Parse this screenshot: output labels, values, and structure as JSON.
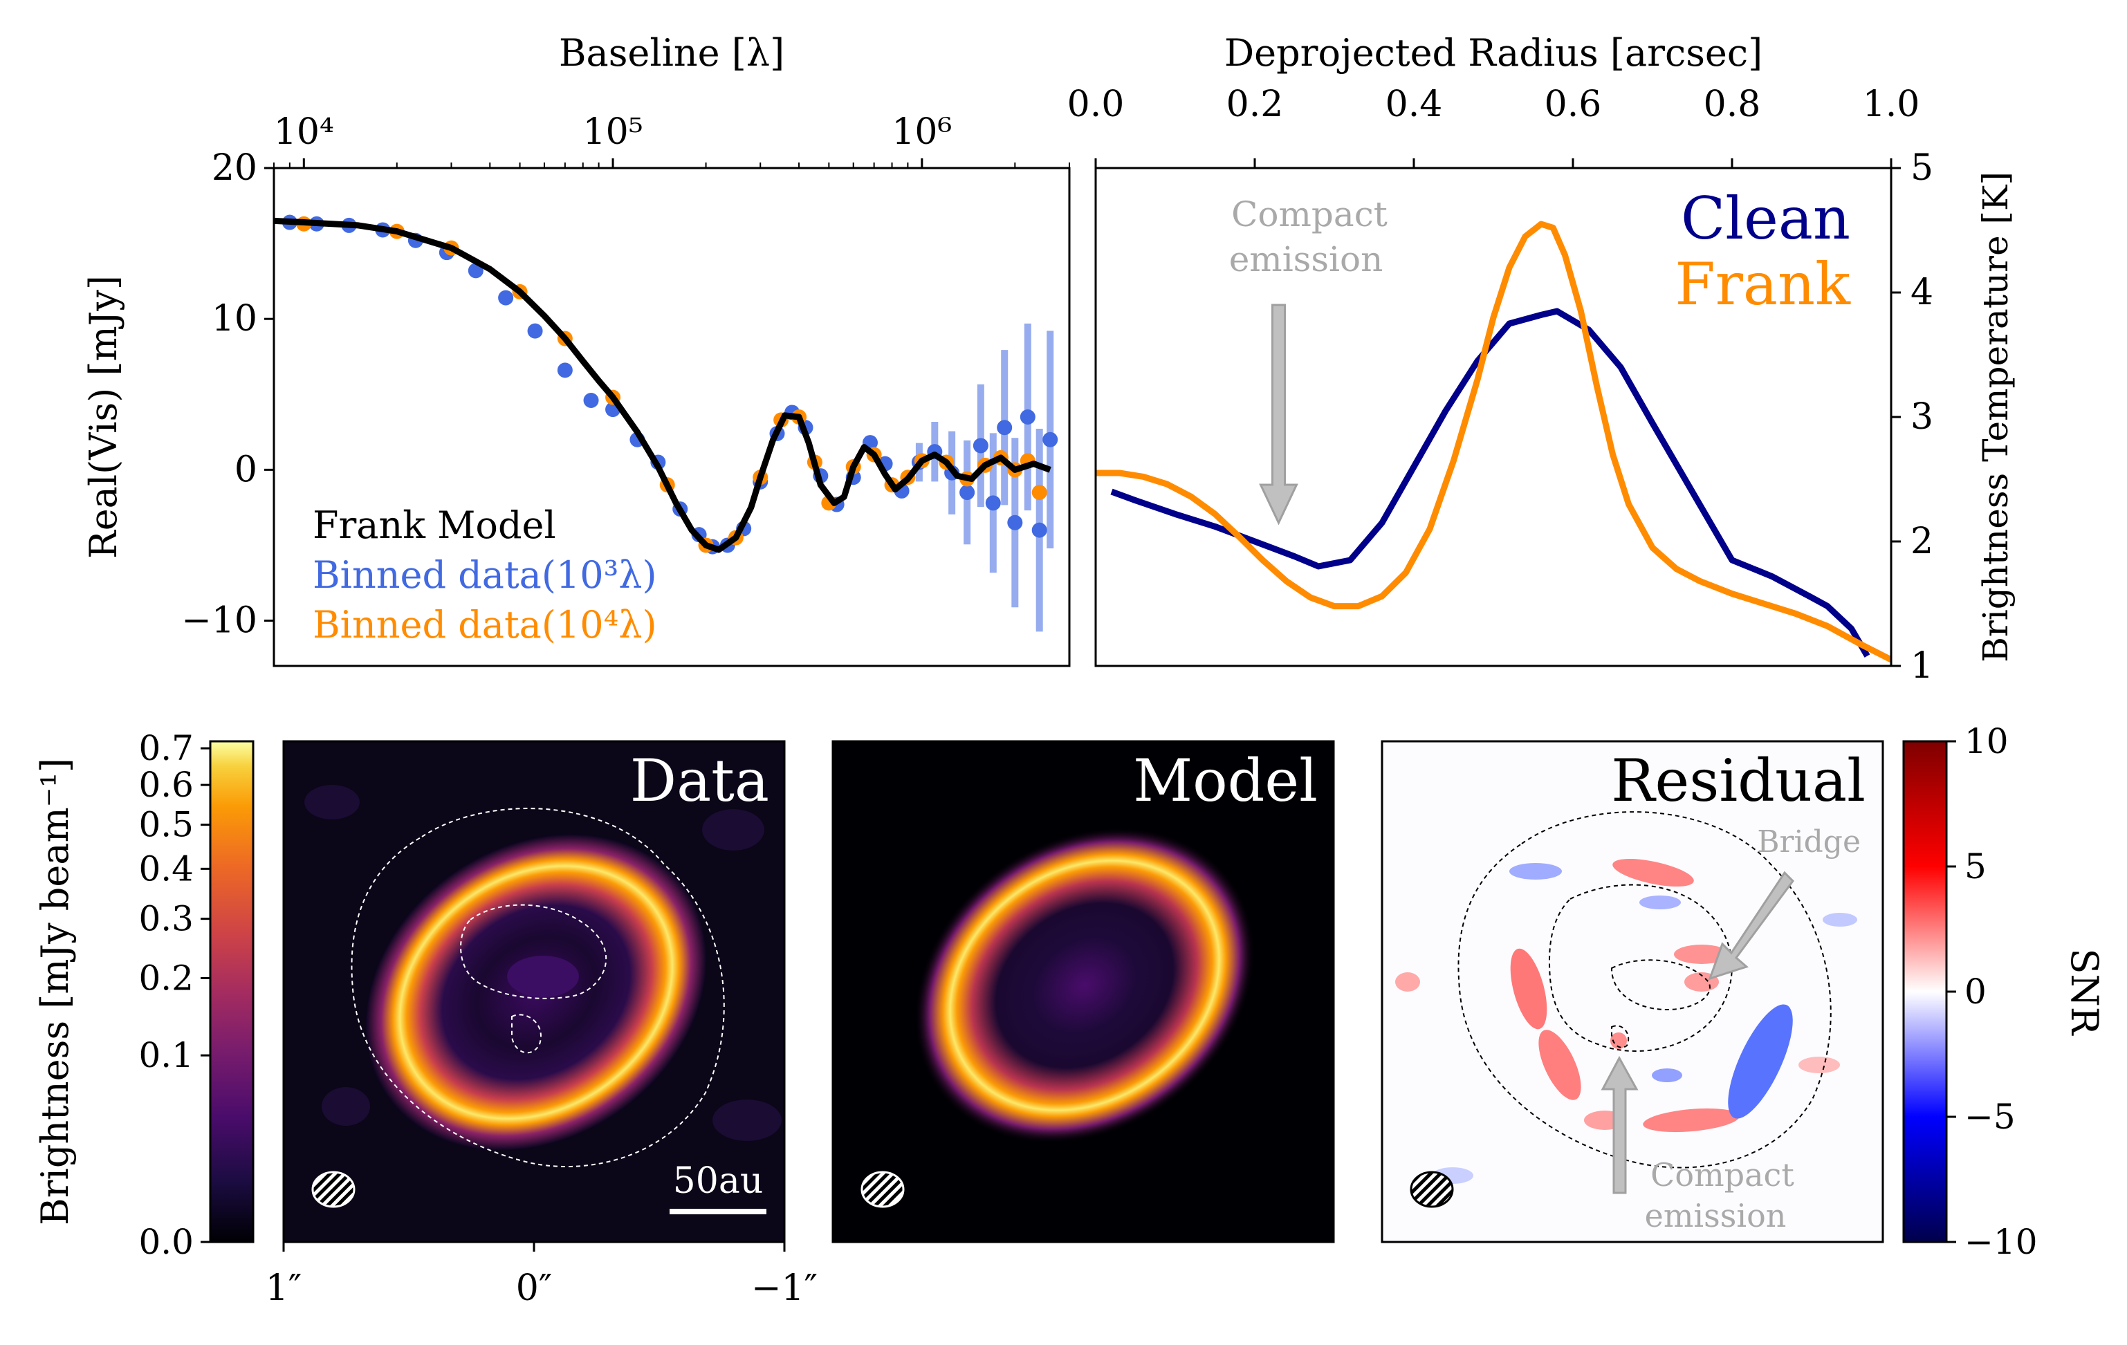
{
  "figure": {
    "colors": {
      "frank_model": "#000000",
      "binned_1e3": "#4169e1",
      "binned_1e4": "#ff8c00",
      "clean": "#00008b",
      "frank": "#ff8c00",
      "annotation_gray": "#a9a9a9"
    }
  },
  "chart_data": [
    {
      "id": "visibility",
      "type": "scatter",
      "xlabel": "Baseline [λ]",
      "ylabel": "Real(Vis) [mJy]",
      "xscale": "log",
      "xlim": [
        8000,
        3000000
      ],
      "ylim": [
        -13,
        20
      ],
      "xticks": [
        {
          "v": 10000,
          "label": "10⁴"
        },
        {
          "v": 100000,
          "label": "10⁵"
        },
        {
          "v": 1000000,
          "label": "10⁶"
        }
      ],
      "yticks": [
        {
          "v": -10,
          "label": "−10"
        },
        {
          "v": 0,
          "label": "0"
        },
        {
          "v": 10,
          "label": "10"
        },
        {
          "v": 20,
          "label": "20"
        }
      ],
      "legend": {
        "position": "lower-left",
        "entries": [
          "Frank Model",
          "Binned data(10³λ)",
          "Binned data(10⁴λ)"
        ]
      },
      "series": [
        {
          "name": "Frank Model",
          "style": "line",
          "x": [
            8000,
            10000,
            15000,
            20000,
            30000,
            40000,
            50000,
            60000,
            70000,
            80000,
            90000,
            100000,
            120000,
            140000,
            160000,
            180000,
            200000,
            220000,
            250000,
            280000,
            300000,
            330000,
            360000,
            400000,
            430000,
            470000,
            520000,
            560000,
            600000,
            650000,
            700000,
            760000,
            820000,
            900000,
            1000000,
            1100000,
            1200000,
            1300000,
            1450000,
            1600000,
            1800000,
            2000000,
            2300000,
            2600000
          ],
          "y": [
            16.5,
            16.4,
            16.2,
            15.8,
            14.7,
            13.3,
            11.8,
            10.2,
            8.7,
            7.2,
            5.9,
            4.8,
            2.5,
            0.2,
            -2.2,
            -4.0,
            -5.0,
            -5.3,
            -4.5,
            -2.5,
            -0.5,
            2.0,
            3.6,
            3.5,
            1.8,
            -1.0,
            -2.2,
            -1.8,
            0.2,
            1.5,
            1.0,
            -0.3,
            -1.3,
            -0.6,
            0.6,
            1.0,
            0.5,
            -0.4,
            -0.6,
            0.3,
            0.8,
            0.0,
            0.4,
            0.0
          ]
        },
        {
          "name": "Binned data(10³λ)",
          "style": "scatter",
          "x": [
            9000,
            11000,
            14000,
            18000,
            23000,
            29000,
            36000,
            45000,
            56000,
            70000,
            85000,
            100000,
            120000,
            140000,
            165000,
            190000,
            210000,
            235000,
            265000,
            300000,
            340000,
            380000,
            420000,
            470000,
            530000,
            600000,
            680000,
            760000,
            860000,
            980000,
            1100000,
            1250000,
            1400000,
            1550000,
            1700000,
            1850000,
            2000000,
            2200000,
            2400000,
            2600000
          ],
          "y": [
            16.4,
            16.3,
            16.2,
            15.9,
            15.2,
            14.4,
            13.2,
            11.4,
            9.2,
            6.6,
            4.6,
            4.0,
            2.0,
            0.5,
            -2.6,
            -4.3,
            -5.1,
            -5.0,
            -3.9,
            -0.8,
            2.4,
            3.8,
            2.8,
            -0.4,
            -2.3,
            -0.5,
            1.8,
            0.4,
            -1.4,
            0.5,
            1.2,
            -0.2,
            -1.5,
            1.6,
            -2.2,
            2.8,
            -3.5,
            3.5,
            -4.0,
            2.0
          ]
        },
        {
          "name": "Binned data(10⁴λ)",
          "style": "scatter",
          "x": [
            10000,
            20000,
            30000,
            50000,
            70000,
            100000,
            150000,
            200000,
            250000,
            300000,
            350000,
            400000,
            450000,
            500000,
            600000,
            700000,
            800000,
            900000,
            1000000,
            1200000,
            1400000,
            1600000,
            1800000,
            2000000,
            2200000,
            2400000
          ],
          "y": [
            16.3,
            15.8,
            14.7,
            11.8,
            8.7,
            4.8,
            -1.0,
            -5.0,
            -4.5,
            -0.5,
            3.3,
            3.5,
            0.5,
            -2.2,
            0.2,
            1.0,
            -1.0,
            -0.5,
            0.6,
            0.5,
            -0.6,
            0.3,
            0.8,
            0.0,
            0.6,
            -1.5
          ]
        }
      ]
    },
    {
      "id": "radial-profile",
      "type": "line",
      "xlabel": "Deprojected Radius [arcsec]",
      "ylabel": "Brightness Temperature [K]",
      "xlim": [
        0.0,
        1.0
      ],
      "ylim": [
        1,
        5
      ],
      "xticks": [
        {
          "v": 0.0,
          "label": "0.0"
        },
        {
          "v": 0.2,
          "label": "0.2"
        },
        {
          "v": 0.4,
          "label": "0.4"
        },
        {
          "v": 0.6,
          "label": "0.6"
        },
        {
          "v": 0.8,
          "label": "0.8"
        },
        {
          "v": 1.0,
          "label": "1.0"
        }
      ],
      "yticks": [
        {
          "v": 1,
          "label": "1"
        },
        {
          "v": 2,
          "label": "2"
        },
        {
          "v": 3,
          "label": "3"
        },
        {
          "v": 4,
          "label": "4"
        },
        {
          "v": 5,
          "label": "5"
        }
      ],
      "legend": {
        "position": "top-right",
        "entries": [
          "Clean",
          "Frank"
        ]
      },
      "annotation": {
        "text_line1": "Compact",
        "text_line2": "emission",
        "x": 0.23,
        "y_tip": 2.15,
        "y_tail": 3.9
      },
      "series": [
        {
          "name": "Clean",
          "x": [
            0.02,
            0.05,
            0.1,
            0.15,
            0.2,
            0.25,
            0.28,
            0.32,
            0.36,
            0.4,
            0.44,
            0.48,
            0.52,
            0.56,
            0.58,
            0.62,
            0.66,
            0.7,
            0.75,
            0.8,
            0.85,
            0.9,
            0.92,
            0.95,
            0.97
          ],
          "y": [
            2.4,
            2.33,
            2.22,
            2.12,
            2.0,
            1.88,
            1.8,
            1.85,
            2.15,
            2.6,
            3.05,
            3.45,
            3.75,
            3.82,
            3.85,
            3.7,
            3.4,
            2.95,
            2.4,
            1.85,
            1.72,
            1.55,
            1.48,
            1.3,
            1.08
          ]
        },
        {
          "name": "Frank",
          "x": [
            0.0,
            0.03,
            0.06,
            0.09,
            0.12,
            0.15,
            0.18,
            0.21,
            0.24,
            0.27,
            0.3,
            0.33,
            0.36,
            0.39,
            0.42,
            0.45,
            0.48,
            0.5,
            0.52,
            0.54,
            0.56,
            0.575,
            0.59,
            0.61,
            0.63,
            0.65,
            0.67,
            0.7,
            0.73,
            0.76,
            0.8,
            0.84,
            0.88,
            0.92,
            0.96,
            1.0
          ],
          "y": [
            2.55,
            2.55,
            2.52,
            2.46,
            2.36,
            2.22,
            2.04,
            1.85,
            1.68,
            1.55,
            1.48,
            1.48,
            1.56,
            1.75,
            2.1,
            2.65,
            3.3,
            3.8,
            4.2,
            4.45,
            4.55,
            4.52,
            4.3,
            3.85,
            3.25,
            2.7,
            2.3,
            1.95,
            1.78,
            1.68,
            1.58,
            1.5,
            1.42,
            1.32,
            1.18,
            1.05
          ]
        }
      ]
    },
    {
      "id": "images",
      "type": "heatmap",
      "panels": [
        {
          "name": "data",
          "label": "Data",
          "colormap": "inferno",
          "scalebar": "50au",
          "annotations": []
        },
        {
          "name": "model",
          "label": "Model",
          "colormap": "inferno",
          "annotations": []
        },
        {
          "name": "residual",
          "label": "Residual",
          "colormap": "seismic",
          "annotations": [
            {
              "line1": "Bridge"
            },
            {
              "line1": "Compact",
              "line2": "emission"
            }
          ]
        }
      ],
      "ring": {
        "center_offset_arcsec": [
          -0.3,
          0.1
        ],
        "major_arcsec": 0.56,
        "minor_arcsec": 0.4,
        "position_angle_deg": -40
      },
      "xticks": [
        {
          "v": 1,
          "label": "1″"
        },
        {
          "v": 0,
          "label": "0″"
        },
        {
          "v": -1,
          "label": "−1″"
        }
      ],
      "colorbar_left": {
        "label": "Brightness [mJy beam⁻¹]",
        "ticks": [
          "0.0",
          "0.1",
          "0.2",
          "0.3",
          "0.4",
          "0.5",
          "0.6",
          "0.7"
        ],
        "range": [
          0.0,
          0.72
        ]
      },
      "colorbar_right": {
        "label": "SNR",
        "ticks": [
          "−10",
          "−5",
          "0",
          "5",
          "10"
        ],
        "range": [
          -10,
          10
        ]
      }
    }
  ]
}
